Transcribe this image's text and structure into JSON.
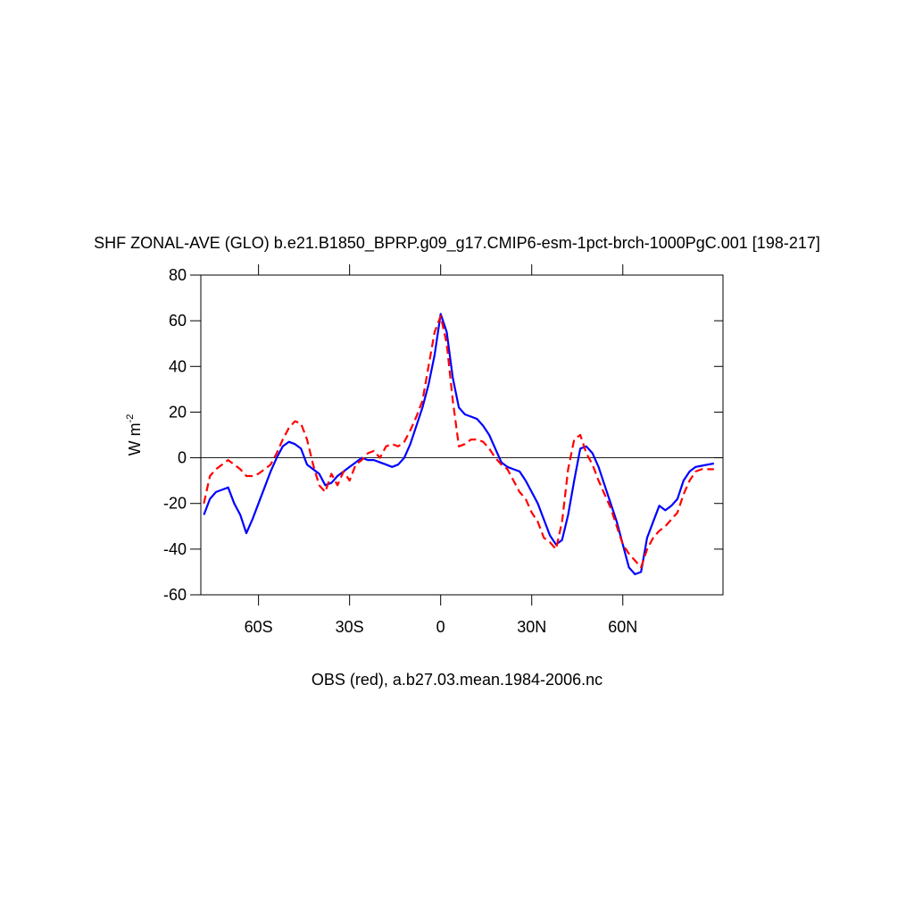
{
  "chart_data": {
    "type": "line",
    "title": "SHF ZONAL-AVE (GLO) b.e21.B1850_BPRP.g09_g17.CMIP6-esm-1pct-brch-1000PgC.001 [198-217]",
    "x_label": "OBS (red), a.b27.03.mean.1984-2006.nc",
    "y_label": "W m",
    "y_label_exponent": "-2",
    "x": [
      -78,
      -76,
      -74,
      -72,
      -70,
      -68,
      -66,
      -64,
      -62,
      -60,
      -58,
      -56,
      -54,
      -52,
      -50,
      -48,
      -46,
      -44,
      -42,
      -40,
      -38,
      -36,
      -34,
      -32,
      -30,
      -28,
      -26,
      -24,
      -22,
      -20,
      -18,
      -16,
      -14,
      -12,
      -10,
      -8,
      -6,
      -4,
      -2,
      0,
      2,
      4,
      6,
      8,
      10,
      12,
      14,
      16,
      18,
      20,
      22,
      24,
      26,
      28,
      30,
      32,
      34,
      36,
      38,
      40,
      42,
      44,
      46,
      48,
      50,
      52,
      54,
      56,
      58,
      60,
      62,
      64,
      66,
      68,
      70,
      72,
      74,
      76,
      78,
      80,
      82,
      84,
      86,
      88,
      90
    ],
    "series": [
      {
        "color": "#0000ff",
        "line_style": "solid",
        "values": [
          -25,
          -18,
          -15,
          -14,
          -13,
          -20,
          -25,
          -33,
          -27,
          -20,
          -13,
          -6,
          0,
          5,
          7,
          6,
          4,
          -3,
          -5,
          -7,
          -12,
          -11,
          -8,
          -6,
          -4,
          -2,
          0,
          -1,
          -1,
          -2,
          -3,
          -4,
          -3,
          0,
          6,
          14,
          22,
          32,
          45,
          63,
          55,
          35,
          22,
          19,
          18,
          17,
          14,
          10,
          4,
          -2,
          -4,
          -5,
          -6,
          -10,
          -15,
          -20,
          -27,
          -34,
          -38,
          -36,
          -25,
          -10,
          4,
          5,
          2,
          -4,
          -12,
          -20,
          -28,
          -38,
          -48,
          -51,
          -50,
          -35,
          -28,
          -21,
          -23,
          -21,
          -18,
          -10,
          -6,
          -4,
          -3.5,
          -3,
          -2.5
        ]
      },
      {
        "color": "#ff0000",
        "line_style": "dashed",
        "values": [
          -20,
          -8,
          -5,
          -3,
          -1,
          -3,
          -5,
          -8,
          -8,
          -7,
          -5,
          -3,
          2,
          8,
          13,
          16,
          15,
          8,
          -3,
          -12,
          -15,
          -7,
          -12,
          -6,
          -10,
          -3,
          -1,
          2,
          3,
          0,
          5,
          6,
          5,
          7,
          12,
          18,
          25,
          40,
          55,
          62,
          50,
          25,
          5,
          6,
          8,
          8,
          7,
          4,
          0,
          -3,
          -5,
          -10,
          -15,
          -18,
          -24,
          -28,
          -35,
          -37,
          -40,
          -28,
          -5,
          8,
          10,
          2,
          -3,
          -10,
          -16,
          -22,
          -30,
          -38,
          -42,
          -45,
          -48,
          -40,
          -35,
          -32,
          -30,
          -27,
          -24,
          -16,
          -10,
          -6,
          -5,
          -5,
          -5
        ]
      }
    ],
    "xlim": [
      -79,
      93
    ],
    "ylim": [
      -60,
      80
    ],
    "xticks": [
      {
        "value": -60,
        "label": "60S"
      },
      {
        "value": -30,
        "label": "30S"
      },
      0,
      {
        "value": 30,
        "label": "30N"
      },
      {
        "value": 60,
        "label": "60N"
      }
    ],
    "yticks": [
      -60,
      -40,
      -20,
      0,
      20,
      40,
      60,
      80
    ],
    "reference_line": 0
  }
}
